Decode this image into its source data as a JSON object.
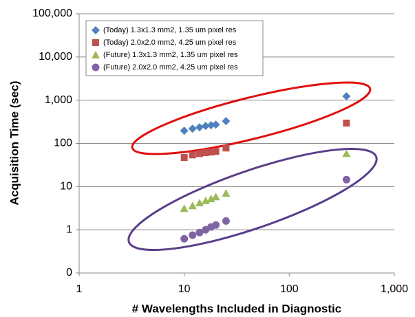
{
  "chart_data": {
    "type": "scatter",
    "xlabel": "# Wavelengths Included in Diagnostic",
    "ylabel": "Acquisition Time (sec)",
    "xscale": "log",
    "yscale": "log",
    "xlim": [
      1,
      1000
    ],
    "ylim": [
      0.1,
      100000
    ],
    "xticks": [
      1,
      10,
      100,
      {
        "value": 1000,
        "label": "1,000"
      }
    ],
    "yticks": [
      {
        "value": 0.1,
        "label": "0"
      },
      1,
      10,
      100,
      {
        "value": 1000,
        "label": "1,000"
      },
      {
        "value": 10000,
        "label": "10,000"
      },
      {
        "value": 100000,
        "label": "100,000"
      }
    ],
    "grid": true,
    "legend": "upper left",
    "x": [
      10,
      12,
      14,
      16,
      18,
      20,
      25,
      350
    ],
    "series": [
      {
        "name": "(Today) 1.3x1.3 mm2, 1.35 um pixel res",
        "color": "#4f81bd",
        "marker": "diamond",
        "values": [
          196,
          219,
          236,
          253,
          263,
          272,
          327,
          1230
        ]
      },
      {
        "name": "(Today) 2.0x2.0 mm2, 4.25 um pixel res",
        "color": "#c0504d",
        "marker": "square",
        "values": [
          47,
          54,
          58,
          61,
          63,
          65,
          78,
          295
        ]
      },
      {
        "name": "(Future) 1.3x1.3 mm2, 1.35 um pixel res",
        "color": "#9bbb59",
        "marker": "triangle",
        "values": [
          3.1,
          3.6,
          4.2,
          4.7,
          5.2,
          5.8,
          7.0,
          58
        ]
      },
      {
        "name": "(Future) 2.0x2.0 mm2, 4.25 um pixel res",
        "color": "#8064a2",
        "marker": "circle",
        "values": [
          0.62,
          0.75,
          0.86,
          1.0,
          1.16,
          1.29,
          1.6,
          14.5
        ]
      }
    ]
  }
}
